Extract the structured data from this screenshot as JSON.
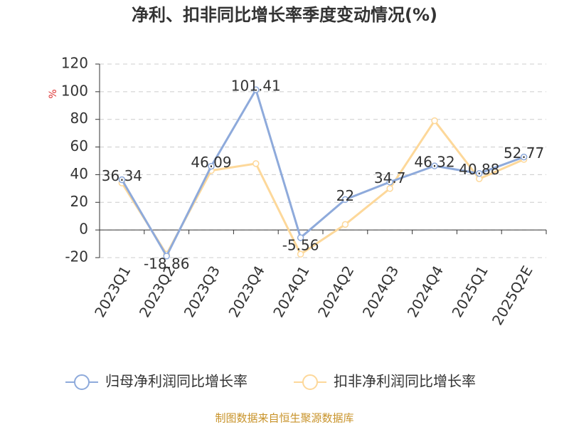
{
  "chart_data": {
    "type": "line",
    "title": "净利、扣非同比增长率季度变动情况(%)",
    "y_label": "%",
    "categories": [
      "2023Q1",
      "2023Q2",
      "2023Q3",
      "2023Q4",
      "2024Q1",
      "2024Q2",
      "2024Q3",
      "2024Q4",
      "2025Q1",
      "2025Q2E"
    ],
    "series": [
      {
        "name": "归母净利润同比增长率",
        "color": "#8eaadb",
        "values": [
          36.34,
          -18.86,
          46.09,
          101.41,
          -5.56,
          22,
          34.7,
          46.32,
          40.88,
          52.77
        ]
      },
      {
        "name": "扣非净利润同比增长率",
        "color": "#fdd89a",
        "values": [
          34,
          -17.5,
          43,
          48,
          -17.5,
          4,
          30,
          79,
          37,
          51
        ]
      }
    ],
    "ylim": [
      -20,
      120
    ],
    "yticks": [
      -20,
      0,
      20,
      40,
      60,
      80,
      100,
      120
    ],
    "grid": true,
    "source": "制图数据来自恒生聚源数据库"
  }
}
